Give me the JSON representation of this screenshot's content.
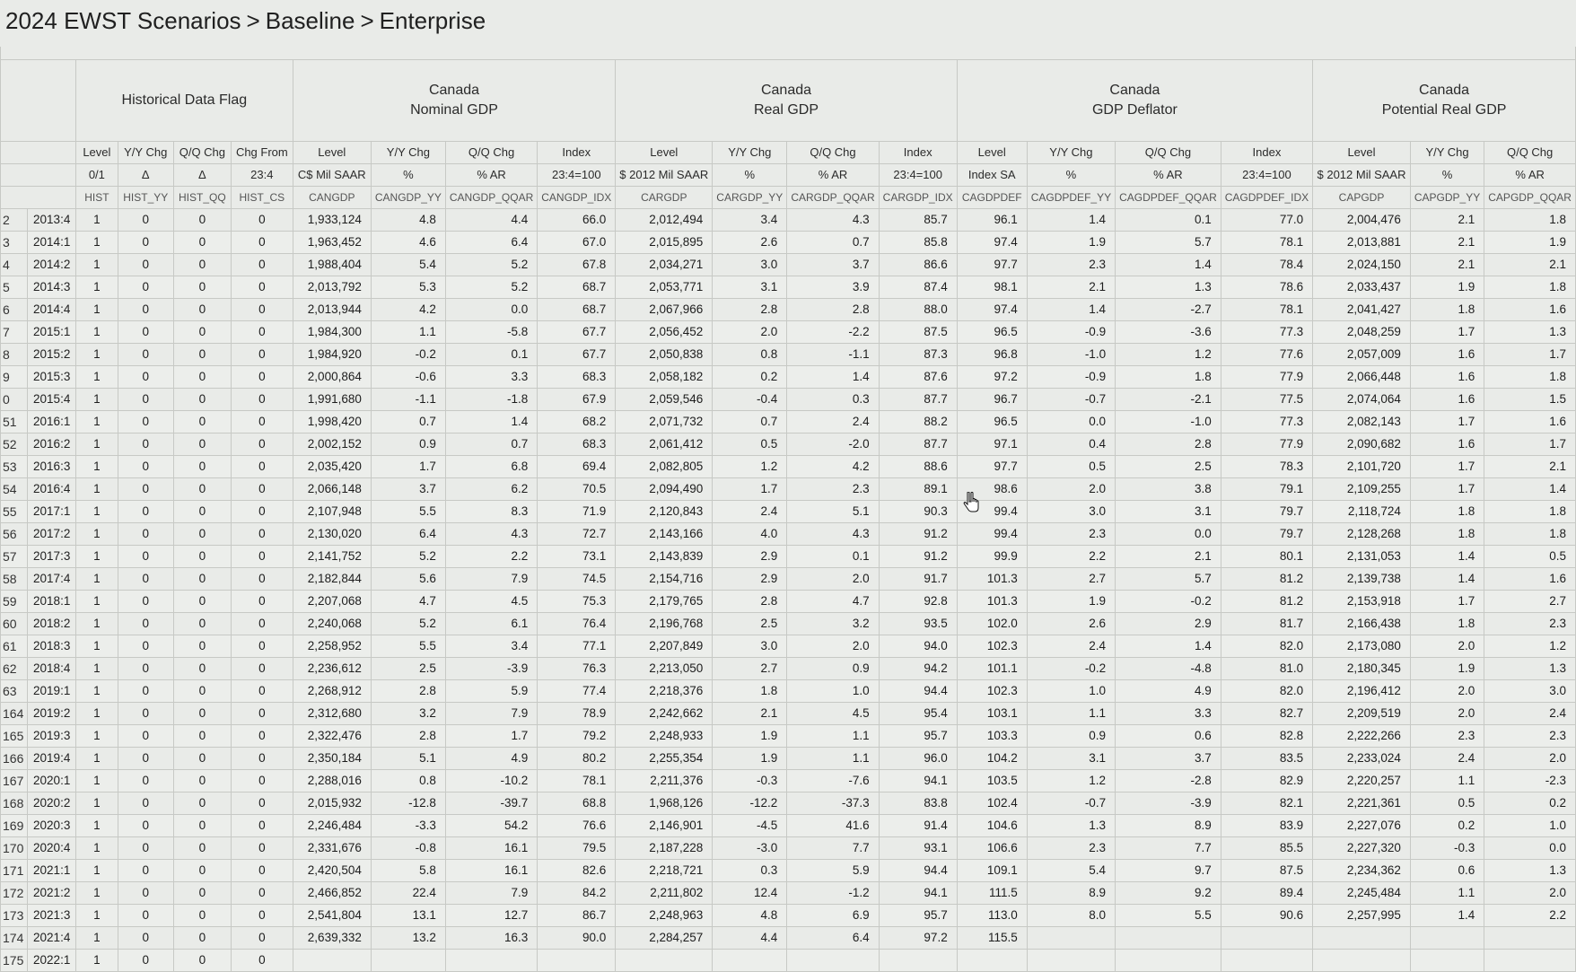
{
  "breadcrumb": [
    "2024 EWST Scenarios",
    "Baseline",
    "Enterprise"
  ],
  "breadcrumb_separator": ">",
  "groups": [
    {
      "line1": "Historical Data Flag",
      "line2": ""
    },
    {
      "line1": "Canada",
      "line2": "Nominal GDP"
    },
    {
      "line1": "Canada",
      "line2": "Real GDP"
    },
    {
      "line1": "Canada",
      "line2": "GDP Deflator"
    },
    {
      "line1": "Canada",
      "line2": "Potential Real GDP"
    }
  ],
  "header_row1": [
    "Level",
    "Y/Y Chg",
    "Q/Q Chg",
    "Chg From",
    "Level",
    "Y/Y Chg",
    "Q/Q Chg",
    "Index",
    "Level",
    "Y/Y Chg",
    "Q/Q Chg",
    "Index",
    "Level",
    "Y/Y Chg",
    "Q/Q Chg",
    "Index",
    "Level",
    "Y/Y Chg",
    "Q/Q Chg"
  ],
  "header_row2": [
    "0/1",
    "Δ",
    "Δ",
    "23:4",
    "C$ Mil SAAR",
    "%",
    "% AR",
    "23:4=100",
    "$ 2012 Mil SAAR",
    "%",
    "% AR",
    "23:4=100",
    "Index SA",
    "%",
    "% AR",
    "23:4=100",
    "$ 2012 Mil SAAR",
    "%",
    "% AR"
  ],
  "header_codes": [
    "HIST",
    "HIST_YY",
    "HIST_QQ",
    "HIST_CS",
    "CANGDP",
    "CANGDP_YY",
    "CANGDP_QQAR",
    "CANGDP_IDX",
    "CARGDP",
    "CARGDP_YY",
    "CARGDP_QQAR",
    "CARGDP_IDX",
    "CAGDPDEF",
    "CAGDPDEF_YY",
    "CAGDPDEF_QQAR",
    "CAGDPDEF_IDX",
    "CAPGDP",
    "CAPGDP_YY",
    "CAPGDP_QQAR"
  ],
  "rows": [
    {
      "n": "2",
      "d": "2013:4",
      "v": [
        "1",
        "0",
        "0",
        "0",
        "1,933,124",
        "4.8",
        "4.4",
        "66.0",
        "2,012,494",
        "3.4",
        "4.3",
        "85.7",
        "96.1",
        "1.4",
        "0.1",
        "77.0",
        "2,004,476",
        "2.1",
        "1.8"
      ]
    },
    {
      "n": "3",
      "d": "2014:1",
      "v": [
        "1",
        "0",
        "0",
        "0",
        "1,963,452",
        "4.6",
        "6.4",
        "67.0",
        "2,015,895",
        "2.6",
        "0.7",
        "85.8",
        "97.4",
        "1.9",
        "5.7",
        "78.1",
        "2,013,881",
        "2.1",
        "1.9"
      ]
    },
    {
      "n": "4",
      "d": "2014:2",
      "v": [
        "1",
        "0",
        "0",
        "0",
        "1,988,404",
        "5.4",
        "5.2",
        "67.8",
        "2,034,271",
        "3.0",
        "3.7",
        "86.6",
        "97.7",
        "2.3",
        "1.4",
        "78.4",
        "2,024,150",
        "2.1",
        "2.1"
      ]
    },
    {
      "n": "5",
      "d": "2014:3",
      "v": [
        "1",
        "0",
        "0",
        "0",
        "2,013,792",
        "5.3",
        "5.2",
        "68.7",
        "2,053,771",
        "3.1",
        "3.9",
        "87.4",
        "98.1",
        "2.1",
        "1.3",
        "78.6",
        "2,033,437",
        "1.9",
        "1.8"
      ]
    },
    {
      "n": "6",
      "d": "2014:4",
      "v": [
        "1",
        "0",
        "0",
        "0",
        "2,013,944",
        "4.2",
        "0.0",
        "68.7",
        "2,067,966",
        "2.8",
        "2.8",
        "88.0",
        "97.4",
        "1.4",
        "-2.7",
        "78.1",
        "2,041,427",
        "1.8",
        "1.6"
      ]
    },
    {
      "n": "7",
      "d": "2015:1",
      "v": [
        "1",
        "0",
        "0",
        "0",
        "1,984,300",
        "1.1",
        "-5.8",
        "67.7",
        "2,056,452",
        "2.0",
        "-2.2",
        "87.5",
        "96.5",
        "-0.9",
        "-3.6",
        "77.3",
        "2,048,259",
        "1.7",
        "1.3"
      ]
    },
    {
      "n": "8",
      "d": "2015:2",
      "v": [
        "1",
        "0",
        "0",
        "0",
        "1,984,920",
        "-0.2",
        "0.1",
        "67.7",
        "2,050,838",
        "0.8",
        "-1.1",
        "87.3",
        "96.8",
        "-1.0",
        "1.2",
        "77.6",
        "2,057,009",
        "1.6",
        "1.7"
      ]
    },
    {
      "n": "9",
      "d": "2015:3",
      "v": [
        "1",
        "0",
        "0",
        "0",
        "2,000,864",
        "-0.6",
        "3.3",
        "68.3",
        "2,058,182",
        "0.2",
        "1.4",
        "87.6",
        "97.2",
        "-0.9",
        "1.8",
        "77.9",
        "2,066,448",
        "1.6",
        "1.8"
      ]
    },
    {
      "n": "0",
      "d": "2015:4",
      "v": [
        "1",
        "0",
        "0",
        "0",
        "1,991,680",
        "-1.1",
        "-1.8",
        "67.9",
        "2,059,546",
        "-0.4",
        "0.3",
        "87.7",
        "96.7",
        "-0.7",
        "-2.1",
        "77.5",
        "2,074,064",
        "1.6",
        "1.5"
      ]
    },
    {
      "n": "51",
      "d": "2016:1",
      "v": [
        "1",
        "0",
        "0",
        "0",
        "1,998,420",
        "0.7",
        "1.4",
        "68.2",
        "2,071,732",
        "0.7",
        "2.4",
        "88.2",
        "96.5",
        "0.0",
        "-1.0",
        "77.3",
        "2,082,143",
        "1.7",
        "1.6"
      ]
    },
    {
      "n": "52",
      "d": "2016:2",
      "v": [
        "1",
        "0",
        "0",
        "0",
        "2,002,152",
        "0.9",
        "0.7",
        "68.3",
        "2,061,412",
        "0.5",
        "-2.0",
        "87.7",
        "97.1",
        "0.4",
        "2.8",
        "77.9",
        "2,090,682",
        "1.6",
        "1.7"
      ]
    },
    {
      "n": "53",
      "d": "2016:3",
      "v": [
        "1",
        "0",
        "0",
        "0",
        "2,035,420",
        "1.7",
        "6.8",
        "69.4",
        "2,082,805",
        "1.2",
        "4.2",
        "88.6",
        "97.7",
        "0.5",
        "2.5",
        "78.3",
        "2,101,720",
        "1.7",
        "2.1"
      ]
    },
    {
      "n": "54",
      "d": "2016:4",
      "v": [
        "1",
        "0",
        "0",
        "0",
        "2,066,148",
        "3.7",
        "6.2",
        "70.5",
        "2,094,490",
        "1.7",
        "2.3",
        "89.1",
        "98.6",
        "2.0",
        "3.8",
        "79.1",
        "2,109,255",
        "1.7",
        "1.4"
      ]
    },
    {
      "n": "55",
      "d": "2017:1",
      "v": [
        "1",
        "0",
        "0",
        "0",
        "2,107,948",
        "5.5",
        "8.3",
        "71.9",
        "2,120,843",
        "2.4",
        "5.1",
        "90.3",
        "99.4",
        "3.0",
        "3.1",
        "79.7",
        "2,118,724",
        "1.8",
        "1.8"
      ]
    },
    {
      "n": "56",
      "d": "2017:2",
      "v": [
        "1",
        "0",
        "0",
        "0",
        "2,130,020",
        "6.4",
        "4.3",
        "72.7",
        "2,143,166",
        "4.0",
        "4.3",
        "91.2",
        "99.4",
        "2.3",
        "0.0",
        "79.7",
        "2,128,268",
        "1.8",
        "1.8"
      ]
    },
    {
      "n": "57",
      "d": "2017:3",
      "v": [
        "1",
        "0",
        "0",
        "0",
        "2,141,752",
        "5.2",
        "2.2",
        "73.1",
        "2,143,839",
        "2.9",
        "0.1",
        "91.2",
        "99.9",
        "2.2",
        "2.1",
        "80.1",
        "2,131,053",
        "1.4",
        "0.5"
      ]
    },
    {
      "n": "58",
      "d": "2017:4",
      "v": [
        "1",
        "0",
        "0",
        "0",
        "2,182,844",
        "5.6",
        "7.9",
        "74.5",
        "2,154,716",
        "2.9",
        "2.0",
        "91.7",
        "101.3",
        "2.7",
        "5.7",
        "81.2",
        "2,139,738",
        "1.4",
        "1.6"
      ]
    },
    {
      "n": "59",
      "d": "2018:1",
      "v": [
        "1",
        "0",
        "0",
        "0",
        "2,207,068",
        "4.7",
        "4.5",
        "75.3",
        "2,179,765",
        "2.8",
        "4.7",
        "92.8",
        "101.3",
        "1.9",
        "-0.2",
        "81.2",
        "2,153,918",
        "1.7",
        "2.7"
      ]
    },
    {
      "n": "60",
      "d": "2018:2",
      "v": [
        "1",
        "0",
        "0",
        "0",
        "2,240,068",
        "5.2",
        "6.1",
        "76.4",
        "2,196,768",
        "2.5",
        "3.2",
        "93.5",
        "102.0",
        "2.6",
        "2.9",
        "81.7",
        "2,166,438",
        "1.8",
        "2.3"
      ]
    },
    {
      "n": "61",
      "d": "2018:3",
      "v": [
        "1",
        "0",
        "0",
        "0",
        "2,258,952",
        "5.5",
        "3.4",
        "77.1",
        "2,207,849",
        "3.0",
        "2.0",
        "94.0",
        "102.3",
        "2.4",
        "1.4",
        "82.0",
        "2,173,080",
        "2.0",
        "1.2"
      ]
    },
    {
      "n": "62",
      "d": "2018:4",
      "v": [
        "1",
        "0",
        "0",
        "0",
        "2,236,612",
        "2.5",
        "-3.9",
        "76.3",
        "2,213,050",
        "2.7",
        "0.9",
        "94.2",
        "101.1",
        "-0.2",
        "-4.8",
        "81.0",
        "2,180,345",
        "1.9",
        "1.3"
      ]
    },
    {
      "n": "63",
      "d": "2019:1",
      "v": [
        "1",
        "0",
        "0",
        "0",
        "2,268,912",
        "2.8",
        "5.9",
        "77.4",
        "2,218,376",
        "1.8",
        "1.0",
        "94.4",
        "102.3",
        "1.0",
        "4.9",
        "82.0",
        "2,196,412",
        "2.0",
        "3.0"
      ]
    },
    {
      "n": "164",
      "d": "2019:2",
      "v": [
        "1",
        "0",
        "0",
        "0",
        "2,312,680",
        "3.2",
        "7.9",
        "78.9",
        "2,242,662",
        "2.1",
        "4.5",
        "95.4",
        "103.1",
        "1.1",
        "3.3",
        "82.7",
        "2,209,519",
        "2.0",
        "2.4"
      ]
    },
    {
      "n": "165",
      "d": "2019:3",
      "v": [
        "1",
        "0",
        "0",
        "0",
        "2,322,476",
        "2.8",
        "1.7",
        "79.2",
        "2,248,933",
        "1.9",
        "1.1",
        "95.7",
        "103.3",
        "0.9",
        "0.6",
        "82.8",
        "2,222,266",
        "2.3",
        "2.3"
      ]
    },
    {
      "n": "166",
      "d": "2019:4",
      "v": [
        "1",
        "0",
        "0",
        "0",
        "2,350,184",
        "5.1",
        "4.9",
        "80.2",
        "2,255,354",
        "1.9",
        "1.1",
        "96.0",
        "104.2",
        "3.1",
        "3.7",
        "83.5",
        "2,233,024",
        "2.4",
        "2.0"
      ]
    },
    {
      "n": "167",
      "d": "2020:1",
      "v": [
        "1",
        "0",
        "0",
        "0",
        "2,288,016",
        "0.8",
        "-10.2",
        "78.1",
        "2,211,376",
        "-0.3",
        "-7.6",
        "94.1",
        "103.5",
        "1.2",
        "-2.8",
        "82.9",
        "2,220,257",
        "1.1",
        "-2.3"
      ]
    },
    {
      "n": "168",
      "d": "2020:2",
      "v": [
        "1",
        "0",
        "0",
        "0",
        "2,015,932",
        "-12.8",
        "-39.7",
        "68.8",
        "1,968,126",
        "-12.2",
        "-37.3",
        "83.8",
        "102.4",
        "-0.7",
        "-3.9",
        "82.1",
        "2,221,361",
        "0.5",
        "0.2"
      ]
    },
    {
      "n": "169",
      "d": "2020:3",
      "v": [
        "1",
        "0",
        "0",
        "0",
        "2,246,484",
        "-3.3",
        "54.2",
        "76.6",
        "2,146,901",
        "-4.5",
        "41.6",
        "91.4",
        "104.6",
        "1.3",
        "8.9",
        "83.9",
        "2,227,076",
        "0.2",
        "1.0"
      ]
    },
    {
      "n": "170",
      "d": "2020:4",
      "v": [
        "1",
        "0",
        "0",
        "0",
        "2,331,676",
        "-0.8",
        "16.1",
        "79.5",
        "2,187,228",
        "-3.0",
        "7.7",
        "93.1",
        "106.6",
        "2.3",
        "7.7",
        "85.5",
        "2,227,320",
        "-0.3",
        "0.0"
      ]
    },
    {
      "n": "171",
      "d": "2021:1",
      "v": [
        "1",
        "0",
        "0",
        "0",
        "2,420,504",
        "5.8",
        "16.1",
        "82.6",
        "2,218,721",
        "0.3",
        "5.9",
        "94.4",
        "109.1",
        "5.4",
        "9.7",
        "87.5",
        "2,234,362",
        "0.6",
        "1.3"
      ]
    },
    {
      "n": "172",
      "d": "2021:2",
      "v": [
        "1",
        "0",
        "0",
        "0",
        "2,466,852",
        "22.4",
        "7.9",
        "84.2",
        "2,211,802",
        "12.4",
        "-1.2",
        "94.1",
        "111.5",
        "8.9",
        "9.2",
        "89.4",
        "2,245,484",
        "1.1",
        "2.0"
      ]
    },
    {
      "n": "173",
      "d": "2021:3",
      "v": [
        "1",
        "0",
        "0",
        "0",
        "2,541,804",
        "13.1",
        "12.7",
        "86.7",
        "2,248,963",
        "4.8",
        "6.9",
        "95.7",
        "113.0",
        "8.0",
        "5.5",
        "90.6",
        "2,257,995",
        "1.4",
        "2.2"
      ]
    },
    {
      "n": "174",
      "d": "2021:4",
      "v": [
        "1",
        "0",
        "0",
        "0",
        "2,639,332",
        "13.2",
        "16.3",
        "90.0",
        "2,284,257",
        "4.4",
        "6.4",
        "97.2",
        "115.5",
        "",
        "",
        "",
        "",
        "",
        ""
      ]
    },
    {
      "n": "175",
      "d": "2022:1",
      "v": [
        "1",
        "0",
        "0",
        "0",
        "",
        "",
        "",
        "",
        "",
        "",
        "",
        "",
        "",
        "",
        "",
        "",
        "",
        "",
        ""
      ]
    }
  ]
}
